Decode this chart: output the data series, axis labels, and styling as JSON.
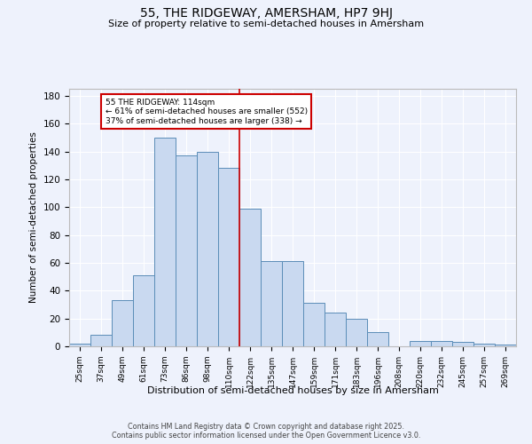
{
  "title": "55, THE RIDGEWAY, AMERSHAM, HP7 9HJ",
  "subtitle": "Size of property relative to semi-detached houses in Amersham",
  "xlabel": "Distribution of semi-detached houses by size in Amersham",
  "ylabel": "Number of semi-detached properties",
  "bar_labels": [
    "25sqm",
    "37sqm",
    "49sqm",
    "61sqm",
    "73sqm",
    "86sqm",
    "98sqm",
    "110sqm",
    "122sqm",
    "135sqm",
    "147sqm",
    "159sqm",
    "171sqm",
    "183sqm",
    "196sqm",
    "208sqm",
    "220sqm",
    "232sqm",
    "245sqm",
    "257sqm",
    "269sqm"
  ],
  "bar_values": [
    2,
    8,
    33,
    51,
    150,
    137,
    140,
    128,
    99,
    61,
    61,
    31,
    24,
    20,
    10,
    0,
    4,
    4,
    3,
    2,
    1
  ],
  "bar_color": "#c9d9f0",
  "bar_edge_color": "#5b8db8",
  "annotation_text": "55 THE RIDGEWAY: 114sqm\n← 61% of semi-detached houses are smaller (552)\n37% of semi-detached houses are larger (338) →",
  "annotation_box_color": "#ffffff",
  "annotation_box_edge": "#cc0000",
  "vline_color": "#cc0000",
  "ylim": [
    0,
    185
  ],
  "yticks": [
    0,
    20,
    40,
    60,
    80,
    100,
    120,
    140,
    160,
    180
  ],
  "background_color": "#eef2fc",
  "grid_color": "#ffffff",
  "footer_line1": "Contains HM Land Registry data © Crown copyright and database right 2025.",
  "footer_line2": "Contains public sector information licensed under the Open Government Licence v3.0."
}
